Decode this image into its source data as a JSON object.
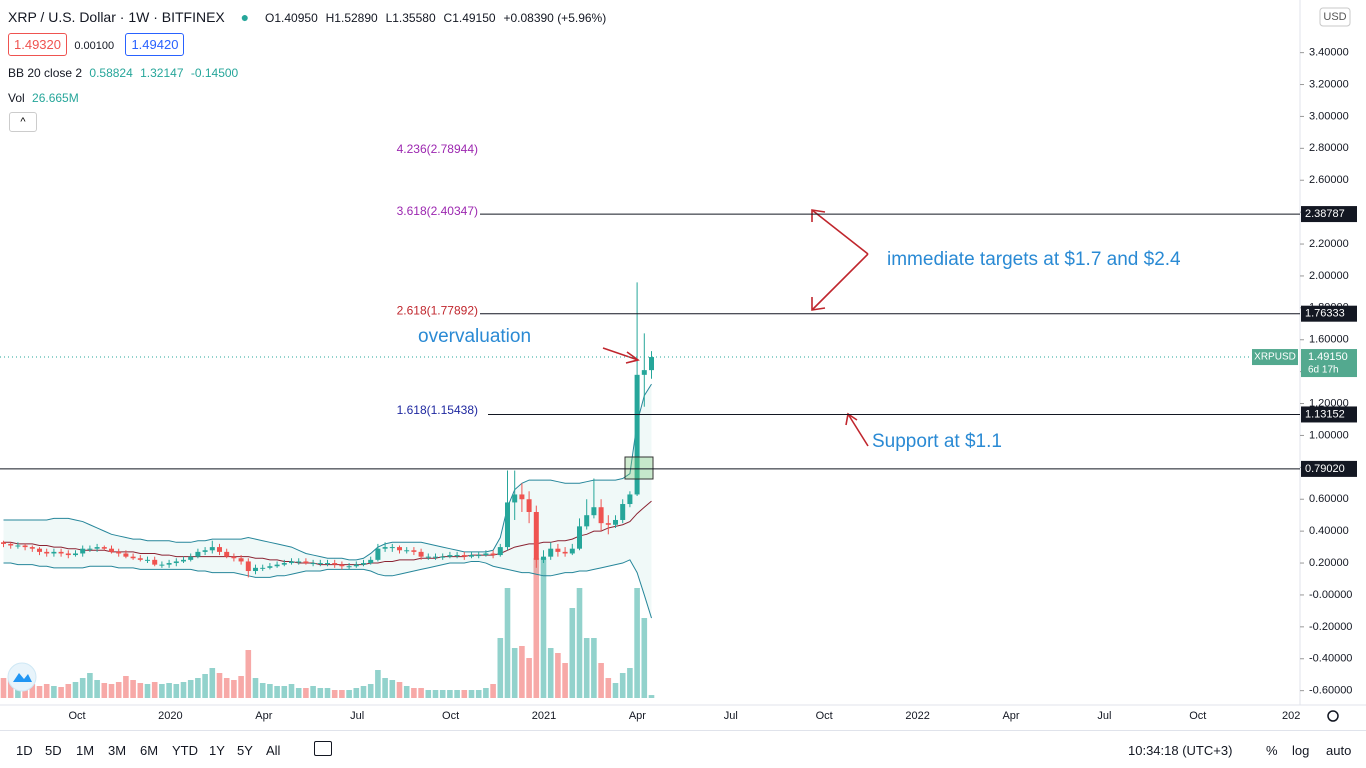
{
  "header": {
    "title": "XRP / U.S. Dollar · 1W · BITFINEX",
    "ohlc": [
      "O1.40950",
      "H1.52890",
      "L1.35580",
      "C1.49150"
    ],
    "change": "+0.08390 (+5.96%)",
    "sell": "1.49320",
    "spread": "0.00100",
    "buy": "1.49420",
    "bb_name": "BB 20 close 2",
    "bb_values": [
      "0.58824",
      "1.32147",
      "-0.14500"
    ],
    "vol_name": "Vol",
    "vol_value": "26.665M",
    "currency": "USD"
  },
  "toolbar": {
    "ranges": [
      "1D",
      "5D",
      "1M",
      "3M",
      "6M",
      "YTD",
      "1Y",
      "5Y",
      "All"
    ],
    "time": "10:34:18 (UTC+3)",
    "toggles": [
      "%",
      "log",
      "auto"
    ]
  },
  "chart_data": {
    "type": "candlestick",
    "up_color": "#26a69a",
    "down_color": "#ef5350",
    "grid": false,
    "open": [
      0.33,
      0.32,
      0.31,
      0.31,
      0.3,
      0.29,
      0.27,
      0.26,
      0.27,
      0.26,
      0.25,
      0.26,
      0.29,
      0.29,
      0.3,
      0.29,
      0.27,
      0.26,
      0.24,
      0.23,
      0.22,
      0.22,
      0.19,
      0.19,
      0.2,
      0.21,
      0.22,
      0.24,
      0.27,
      0.28,
      0.3,
      0.27,
      0.24,
      0.23,
      0.21,
      0.15,
      0.17,
      0.17,
      0.18,
      0.19,
      0.2,
      0.21,
      0.21,
      0.2,
      0.2,
      0.2,
      0.2,
      0.19,
      0.18,
      0.18,
      0.19,
      0.2,
      0.22,
      0.29,
      0.3,
      0.3,
      0.28,
      0.28,
      0.27,
      0.24,
      0.24,
      0.24,
      0.24,
      0.25,
      0.25,
      0.24,
      0.25,
      0.25,
      0.26,
      0.25,
      0.3,
      0.58,
      0.63,
      0.6,
      0.52,
      0.22,
      0.24,
      0.29,
      0.27,
      0.26,
      0.29,
      0.43,
      0.5,
      0.55,
      0.45,
      0.44,
      0.47,
      0.57,
      0.63,
      1.38,
      1.4095
    ],
    "high": [
      0.34,
      0.33,
      0.33,
      0.32,
      0.31,
      0.3,
      0.29,
      0.29,
      0.29,
      0.28,
      0.28,
      0.31,
      0.31,
      0.32,
      0.31,
      0.31,
      0.29,
      0.28,
      0.26,
      0.25,
      0.24,
      0.24,
      0.21,
      0.22,
      0.23,
      0.24,
      0.26,
      0.29,
      0.3,
      0.34,
      0.32,
      0.29,
      0.26,
      0.25,
      0.23,
      0.19,
      0.19,
      0.2,
      0.21,
      0.22,
      0.23,
      0.23,
      0.23,
      0.22,
      0.22,
      0.22,
      0.22,
      0.21,
      0.2,
      0.21,
      0.22,
      0.24,
      0.32,
      0.33,
      0.32,
      0.31,
      0.3,
      0.3,
      0.29,
      0.26,
      0.26,
      0.26,
      0.27,
      0.27,
      0.27,
      0.27,
      0.27,
      0.28,
      0.28,
      0.32,
      0.78,
      0.78,
      0.7,
      0.65,
      0.56,
      0.28,
      0.33,
      0.32,
      0.3,
      0.32,
      0.48,
      0.6,
      0.73,
      0.6,
      0.5,
      0.5,
      0.6,
      0.65,
      1.96,
      1.64,
      1.5289
    ],
    "low": [
      0.3,
      0.29,
      0.29,
      0.28,
      0.27,
      0.25,
      0.24,
      0.24,
      0.24,
      0.23,
      0.24,
      0.24,
      0.27,
      0.27,
      0.28,
      0.26,
      0.24,
      0.23,
      0.22,
      0.21,
      0.2,
      0.18,
      0.17,
      0.17,
      0.18,
      0.2,
      0.21,
      0.23,
      0.25,
      0.26,
      0.25,
      0.23,
      0.21,
      0.19,
      0.11,
      0.13,
      0.15,
      0.16,
      0.17,
      0.18,
      0.19,
      0.19,
      0.19,
      0.18,
      0.18,
      0.18,
      0.17,
      0.16,
      0.16,
      0.17,
      0.18,
      0.19,
      0.21,
      0.27,
      0.27,
      0.26,
      0.26,
      0.25,
      0.22,
      0.22,
      0.22,
      0.22,
      0.23,
      0.23,
      0.22,
      0.23,
      0.23,
      0.24,
      0.23,
      0.24,
      0.28,
      0.47,
      0.52,
      0.45,
      0.17,
      0.2,
      0.22,
      0.24,
      0.24,
      0.25,
      0.28,
      0.41,
      0.48,
      0.4,
      0.38,
      0.42,
      0.45,
      0.55,
      0.62,
      1.18,
      1.3558
    ],
    "close": [
      0.32,
      0.31,
      0.31,
      0.3,
      0.29,
      0.27,
      0.26,
      0.27,
      0.26,
      0.25,
      0.26,
      0.29,
      0.29,
      0.3,
      0.29,
      0.27,
      0.26,
      0.24,
      0.23,
      0.22,
      0.22,
      0.19,
      0.19,
      0.2,
      0.21,
      0.22,
      0.24,
      0.27,
      0.28,
      0.3,
      0.27,
      0.24,
      0.23,
      0.21,
      0.15,
      0.17,
      0.17,
      0.18,
      0.19,
      0.2,
      0.21,
      0.21,
      0.2,
      0.2,
      0.2,
      0.2,
      0.19,
      0.18,
      0.18,
      0.19,
      0.2,
      0.22,
      0.29,
      0.3,
      0.3,
      0.28,
      0.28,
      0.27,
      0.24,
      0.24,
      0.24,
      0.24,
      0.25,
      0.25,
      0.24,
      0.25,
      0.25,
      0.26,
      0.25,
      0.3,
      0.58,
      0.63,
      0.6,
      0.52,
      0.22,
      0.24,
      0.29,
      0.27,
      0.26,
      0.29,
      0.43,
      0.5,
      0.55,
      0.45,
      0.44,
      0.47,
      0.57,
      0.63,
      1.38,
      1.4095,
      1.4915
    ],
    "volume": [
      180,
      162,
      144,
      135,
      126,
      108,
      126,
      108,
      99,
      126,
      144,
      180,
      225,
      162,
      135,
      126,
      144,
      198,
      162,
      135,
      126,
      144,
      126,
      135,
      126,
      144,
      162,
      180,
      216,
      270,
      225,
      180,
      162,
      198,
      432,
      180,
      135,
      126,
      108,
      108,
      126,
      90,
      90,
      108,
      90,
      90,
      72,
      72,
      72,
      90,
      108,
      126,
      252,
      180,
      162,
      144,
      108,
      90,
      90,
      72,
      72,
      72,
      72,
      72,
      72,
      72,
      72,
      90,
      126,
      540,
      990,
      450,
      468,
      360,
      1260,
      1260,
      450,
      405,
      315,
      810,
      990,
      540,
      540,
      315,
      180,
      135,
      225,
      270,
      990,
      720,
      26.665
    ],
    "bb_upper": [
      0.47,
      0.47,
      0.47,
      0.47,
      0.47,
      0.47,
      0.47,
      0.48,
      0.48,
      0.48,
      0.47,
      0.46,
      0.44,
      0.42,
      0.4,
      0.38,
      0.37,
      0.36,
      0.35,
      0.35,
      0.34,
      0.34,
      0.34,
      0.34,
      0.33,
      0.33,
      0.33,
      0.34,
      0.34,
      0.35,
      0.35,
      0.35,
      0.35,
      0.35,
      0.36,
      0.35,
      0.34,
      0.33,
      0.32,
      0.31,
      0.3,
      0.28,
      0.26,
      0.25,
      0.24,
      0.23,
      0.23,
      0.23,
      0.22,
      0.22,
      0.23,
      0.26,
      0.3,
      0.32,
      0.33,
      0.33,
      0.33,
      0.33,
      0.33,
      0.32,
      0.31,
      0.3,
      0.29,
      0.28,
      0.27,
      0.27,
      0.27,
      0.27,
      0.28,
      0.36,
      0.55,
      0.66,
      0.7,
      0.72,
      0.72,
      0.72,
      0.72,
      0.71,
      0.7,
      0.7,
      0.7,
      0.71,
      0.72,
      0.72,
      0.72,
      0.72,
      0.73,
      0.76,
      1.08,
      1.25,
      1.32147
    ],
    "bb_basis": [
      0.33,
      0.33,
      0.32,
      0.32,
      0.32,
      0.31,
      0.31,
      0.3,
      0.3,
      0.29,
      0.29,
      0.28,
      0.28,
      0.28,
      0.28,
      0.27,
      0.27,
      0.27,
      0.27,
      0.26,
      0.26,
      0.26,
      0.25,
      0.25,
      0.24,
      0.24,
      0.24,
      0.24,
      0.24,
      0.24,
      0.24,
      0.24,
      0.24,
      0.24,
      0.24,
      0.23,
      0.23,
      0.22,
      0.22,
      0.21,
      0.21,
      0.2,
      0.2,
      0.2,
      0.19,
      0.19,
      0.19,
      0.19,
      0.19,
      0.19,
      0.19,
      0.2,
      0.2,
      0.21,
      0.21,
      0.22,
      0.22,
      0.22,
      0.23,
      0.23,
      0.23,
      0.24,
      0.24,
      0.24,
      0.24,
      0.25,
      0.25,
      0.25,
      0.25,
      0.26,
      0.28,
      0.3,
      0.31,
      0.32,
      0.32,
      0.33,
      0.33,
      0.34,
      0.34,
      0.35,
      0.37,
      0.38,
      0.4,
      0.4,
      0.42,
      0.43,
      0.44,
      0.46,
      0.51,
      0.55,
      0.58824
    ],
    "bb_lower": [
      0.2,
      0.2,
      0.19,
      0.19,
      0.19,
      0.18,
      0.18,
      0.17,
      0.17,
      0.17,
      0.17,
      0.17,
      0.18,
      0.18,
      0.18,
      0.18,
      0.17,
      0.17,
      0.17,
      0.16,
      0.16,
      0.16,
      0.16,
      0.16,
      0.16,
      0.16,
      0.16,
      0.15,
      0.15,
      0.14,
      0.14,
      0.14,
      0.14,
      0.13,
      0.12,
      0.11,
      0.11,
      0.11,
      0.12,
      0.12,
      0.13,
      0.14,
      0.15,
      0.15,
      0.15,
      0.16,
      0.16,
      0.16,
      0.16,
      0.16,
      0.16,
      0.15,
      0.13,
      0.12,
      0.12,
      0.13,
      0.14,
      0.15,
      0.16,
      0.17,
      0.18,
      0.19,
      0.2,
      0.2,
      0.2,
      0.21,
      0.21,
      0.2,
      0.18,
      0.17,
      0.16,
      0.15,
      0.14,
      0.14,
      0.13,
      0.12,
      0.12,
      0.13,
      0.14,
      0.14,
      0.15,
      0.15,
      0.16,
      0.17,
      0.18,
      0.19,
      0.2,
      0.22,
      0.14,
      0.0,
      -0.145
    ],
    "ylim": [
      -0.69,
      3.73
    ],
    "yticks": [
      {
        "value": 3.4,
        "label": "3.40000"
      },
      {
        "value": 3.2,
        "label": "3.20000"
      },
      {
        "value": 3.0,
        "label": "3.00000"
      },
      {
        "value": 2.8,
        "label": "2.80000"
      },
      {
        "value": 2.6,
        "label": "2.60000"
      },
      {
        "value": 2.4,
        "label": "2.40000"
      },
      {
        "value": 2.2,
        "label": "2.20000"
      },
      {
        "value": 2.0,
        "label": "2.00000"
      },
      {
        "value": 1.8,
        "label": "1.80000"
      },
      {
        "value": 1.6,
        "label": "1.60000"
      },
      {
        "value": 1.4,
        "label": "1.40000"
      },
      {
        "value": 1.2,
        "label": "1.20000"
      },
      {
        "value": 1.0,
        "label": "1.00000"
      },
      {
        "value": 0.8,
        "label": "0.80000"
      },
      {
        "value": 0.6,
        "label": "0.60000"
      },
      {
        "value": 0.4,
        "label": "0.40000"
      },
      {
        "value": 0.2,
        "label": "0.20000"
      },
      {
        "value": 0,
        "label": "-0.00000"
      },
      {
        "value": -0.2,
        "label": "-0.20000"
      },
      {
        "value": -0.4,
        "label": "-0.40000"
      },
      {
        "value": -0.6,
        "label": "-0.60000"
      }
    ],
    "xticks": [
      "Oct",
      "2020",
      "Apr",
      "Jul",
      "Oct",
      "2021",
      "Apr",
      "Jul",
      "Oct",
      "2022",
      "Apr",
      "Jul",
      "Oct",
      "202"
    ],
    "levels": [
      {
        "value": 2.38787,
        "label": "2.38787"
      },
      {
        "value": 1.76333,
        "label": "1.76333"
      },
      {
        "value": 1.13152,
        "label": "1.13152"
      },
      {
        "value": 0.7902,
        "label": "0.79020"
      }
    ],
    "fib_labels": [
      {
        "value": 2.78944,
        "label": "4.236(2.78944)",
        "color": "#9c27b0"
      },
      {
        "value": 2.40347,
        "label": "3.618(2.40347)",
        "color": "#9c27b0"
      },
      {
        "value": 1.77892,
        "label": "2.618(1.77892)",
        "color": "#c0262d"
      },
      {
        "value": 1.15438,
        "label": "1.618(1.15438)",
        "color": "#1f28a0"
      }
    ],
    "last_price": {
      "name": "XRPUSD",
      "value": 1.4915,
      "label": "1.49150",
      "countdown": "6d 17h"
    },
    "annotations": [
      "immediate targets at $1.7 and $2.4",
      "overvaluation",
      "Support at $1.1"
    ]
  }
}
